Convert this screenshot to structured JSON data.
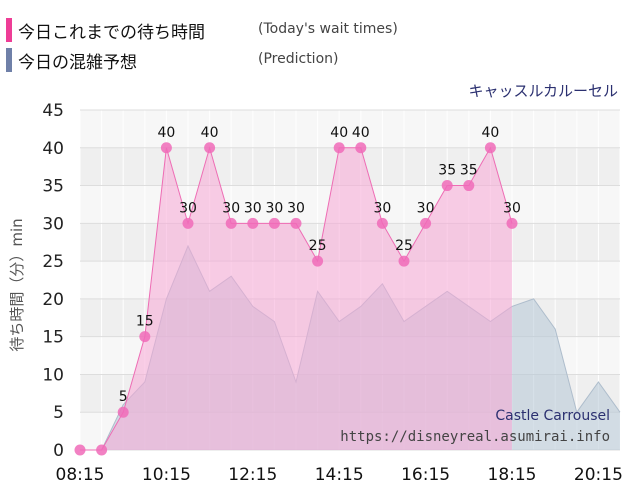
{
  "legend": {
    "today_label": "今日これまでの待ち時間",
    "today_sub": "(Today's wait times)",
    "today_color": "#ee3d96",
    "prediction_label": "今日の混雑予想",
    "prediction_sub": "(Prediction)",
    "prediction_color": "#6f80a8"
  },
  "chart_data": {
    "type": "area",
    "title": "キャッスルカルーセル",
    "watermark_title": "Castle Carrousel",
    "watermark_url": "https://disneyreal.asumirai.info",
    "ylabel": "待ち時間（分）min",
    "ylim": [
      0,
      45
    ],
    "yticks": [
      0,
      5,
      10,
      15,
      20,
      25,
      30,
      35,
      40,
      45
    ],
    "xlim": [
      "08:15",
      "20:45"
    ],
    "xtick_labels": [
      "08:15",
      "10:15",
      "12:15",
      "14:15",
      "16:15",
      "18:15",
      "20:15"
    ],
    "grid": true,
    "series": [
      {
        "name": "Today's wait times",
        "color": "#ee3d96",
        "points": [
          {
            "x": "08:15",
            "y": 0
          },
          {
            "x": "08:45",
            "y": 0
          },
          {
            "x": "09:15",
            "y": 5
          },
          {
            "x": "09:45",
            "y": 15
          },
          {
            "x": "10:15",
            "y": 40
          },
          {
            "x": "10:45",
            "y": 30
          },
          {
            "x": "11:15",
            "y": 40
          },
          {
            "x": "11:45",
            "y": 30
          },
          {
            "x": "12:15",
            "y": 30
          },
          {
            "x": "12:45",
            "y": 30
          },
          {
            "x": "13:15",
            "y": 30
          },
          {
            "x": "13:45",
            "y": 25
          },
          {
            "x": "14:15",
            "y": 40
          },
          {
            "x": "14:45",
            "y": 40
          },
          {
            "x": "15:15",
            "y": 30
          },
          {
            "x": "15:45",
            "y": 25
          },
          {
            "x": "16:15",
            "y": 30
          },
          {
            "x": "16:45",
            "y": 35
          },
          {
            "x": "17:15",
            "y": 35
          },
          {
            "x": "17:45",
            "y": 40
          },
          {
            "x": "18:15",
            "y": 30
          }
        ]
      },
      {
        "name": "Prediction",
        "color": "#6f80a8",
        "points": [
          {
            "x": "08:15",
            "y": 0
          },
          {
            "x": "08:45",
            "y": 0
          },
          {
            "x": "09:15",
            "y": 6
          },
          {
            "x": "09:45",
            "y": 9
          },
          {
            "x": "10:15",
            "y": 20
          },
          {
            "x": "10:45",
            "y": 27
          },
          {
            "x": "11:15",
            "y": 21
          },
          {
            "x": "11:45",
            "y": 23
          },
          {
            "x": "12:15",
            "y": 19
          },
          {
            "x": "12:45",
            "y": 17
          },
          {
            "x": "13:15",
            "y": 9
          },
          {
            "x": "13:45",
            "y": 21
          },
          {
            "x": "14:15",
            "y": 17
          },
          {
            "x": "14:45",
            "y": 19
          },
          {
            "x": "15:15",
            "y": 22
          },
          {
            "x": "15:45",
            "y": 17
          },
          {
            "x": "16:15",
            "y": 19
          },
          {
            "x": "16:45",
            "y": 21
          },
          {
            "x": "17:15",
            "y": 19
          },
          {
            "x": "17:45",
            "y": 17
          },
          {
            "x": "18:15",
            "y": 19
          },
          {
            "x": "18:45",
            "y": 20
          },
          {
            "x": "19:15",
            "y": 16
          },
          {
            "x": "19:45",
            "y": 5
          },
          {
            "x": "20:15",
            "y": 9
          },
          {
            "x": "20:45",
            "y": 5
          }
        ]
      }
    ]
  }
}
